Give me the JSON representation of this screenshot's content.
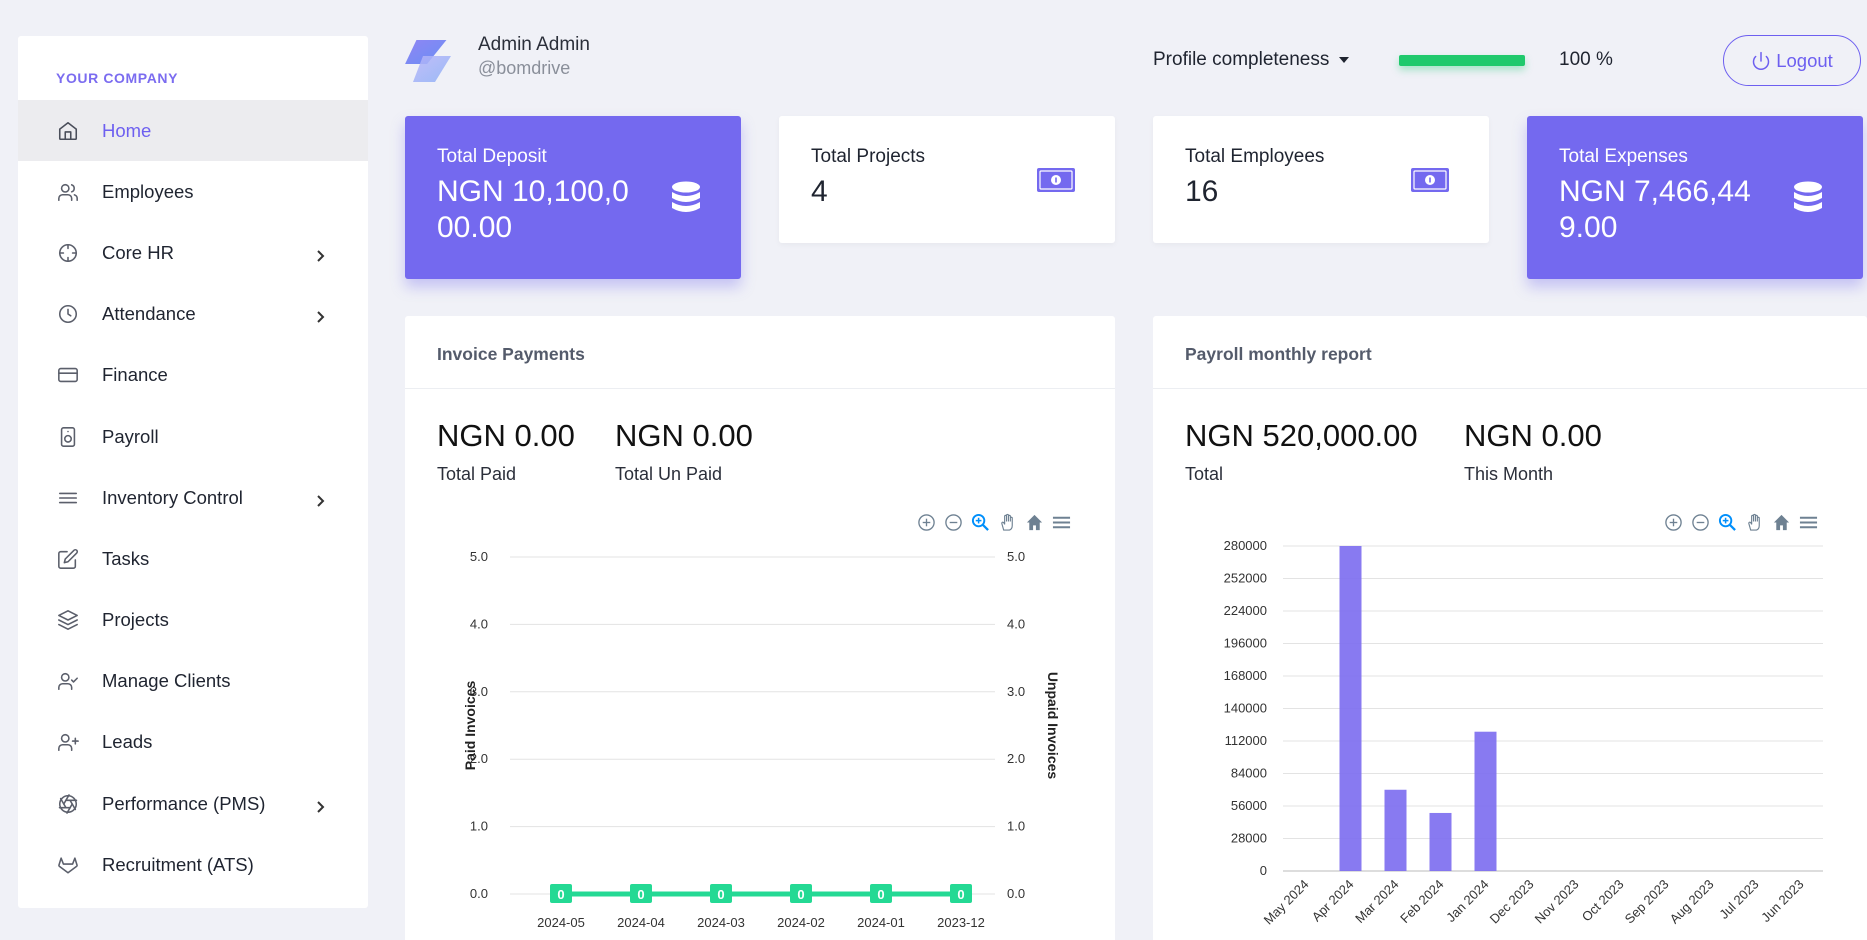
{
  "sidebar": {
    "company": "YOUR COMPANY",
    "items": [
      {
        "label": "Home",
        "icon": "home-icon",
        "active": true,
        "submenu": false
      },
      {
        "label": "Employees",
        "icon": "users-icon",
        "active": false,
        "submenu": false
      },
      {
        "label": "Core HR",
        "icon": "crosshair-icon",
        "active": false,
        "submenu": true
      },
      {
        "label": "Attendance",
        "icon": "clock-icon",
        "active": false,
        "submenu": true
      },
      {
        "label": "Finance",
        "icon": "credit-card-icon",
        "active": false,
        "submenu": false
      },
      {
        "label": "Payroll",
        "icon": "speaker-icon",
        "active": false,
        "submenu": false
      },
      {
        "label": "Inventory Control",
        "icon": "menu-icon",
        "active": false,
        "submenu": true
      },
      {
        "label": "Tasks",
        "icon": "edit-icon",
        "active": false,
        "submenu": false
      },
      {
        "label": "Projects",
        "icon": "layers-icon",
        "active": false,
        "submenu": false
      },
      {
        "label": "Manage Clients",
        "icon": "user-check-icon",
        "active": false,
        "submenu": false
      },
      {
        "label": "Leads",
        "icon": "user-plus-icon",
        "active": false,
        "submenu": false
      },
      {
        "label": "Performance (PMS)",
        "icon": "aperture-icon",
        "active": false,
        "submenu": true
      },
      {
        "label": "Recruitment (ATS)",
        "icon": "gitlab-icon",
        "active": false,
        "submenu": false
      }
    ]
  },
  "header": {
    "user_name": "Admin Admin",
    "user_handle": "@bomdrive",
    "profile_label": "Profile completeness",
    "profile_percent": 100,
    "profile_percent_text": "100 %",
    "logout_label": "Logout"
  },
  "stats": {
    "deposit": {
      "label": "Total Deposit",
      "value": "NGN 10,100,000.00",
      "icon": "database-icon"
    },
    "projects": {
      "label": "Total Projects",
      "value": "4",
      "icon": "money-icon"
    },
    "employees": {
      "label": "Total Employees",
      "value": "16",
      "icon": "money-icon"
    },
    "expenses": {
      "label": "Total Expenses",
      "value": "NGN 7,466,449.00",
      "icon": "database-icon"
    }
  },
  "invoice_card": {
    "title": "Invoice Payments",
    "paid_value": "NGN 0.00",
    "paid_label": "Total Paid",
    "unpaid_value": "NGN 0.00",
    "unpaid_label": "Total Un Paid"
  },
  "payroll_card": {
    "title": "Payroll monthly report",
    "total_value": "NGN 520,000.00",
    "total_label": "Total",
    "month_value": "NGN 0.00",
    "month_label": "This Month"
  },
  "colors": {
    "accent": "#7469ef",
    "green": "#1fc96c",
    "series_green": "#24d994",
    "bar": "#7b6cf0"
  },
  "chart_data": [
    {
      "type": "line",
      "categories": [
        "2024-05",
        "2024-04",
        "2024-03",
        "2024-02",
        "2024-01",
        "2023-12"
      ],
      "series": [
        {
          "values": [
            0,
            0,
            0,
            0,
            0,
            0
          ]
        }
      ],
      "data_labels": [
        "0",
        "0",
        "0",
        "0",
        "0",
        "0"
      ],
      "ylabel": "Paid Invoices",
      "y2label": "Unpaid Invoices",
      "yticks": [
        "0.0",
        "1.0",
        "2.0",
        "3.0",
        "4.0",
        "5.0"
      ],
      "ylim": [
        0,
        5
      ],
      "grid": true
    },
    {
      "type": "bar",
      "categories": [
        "May 2024",
        "Apr 2024",
        "Mar 2024",
        "Feb 2024",
        "Jan 2024",
        "Dec 2023",
        "Nov 2023",
        "Oct 2023",
        "Sep 2023",
        "Aug 2023",
        "Jul 2023",
        "Jun 2023"
      ],
      "values": [
        0,
        280000,
        70000,
        50000,
        120000,
        0,
        0,
        0,
        0,
        0,
        0,
        0
      ],
      "yticks": [
        "0",
        "28000",
        "56000",
        "84000",
        "112000",
        "140000",
        "168000",
        "196000",
        "224000",
        "252000",
        "280000"
      ],
      "ylim": [
        0,
        280000
      ],
      "grid": true
    }
  ]
}
